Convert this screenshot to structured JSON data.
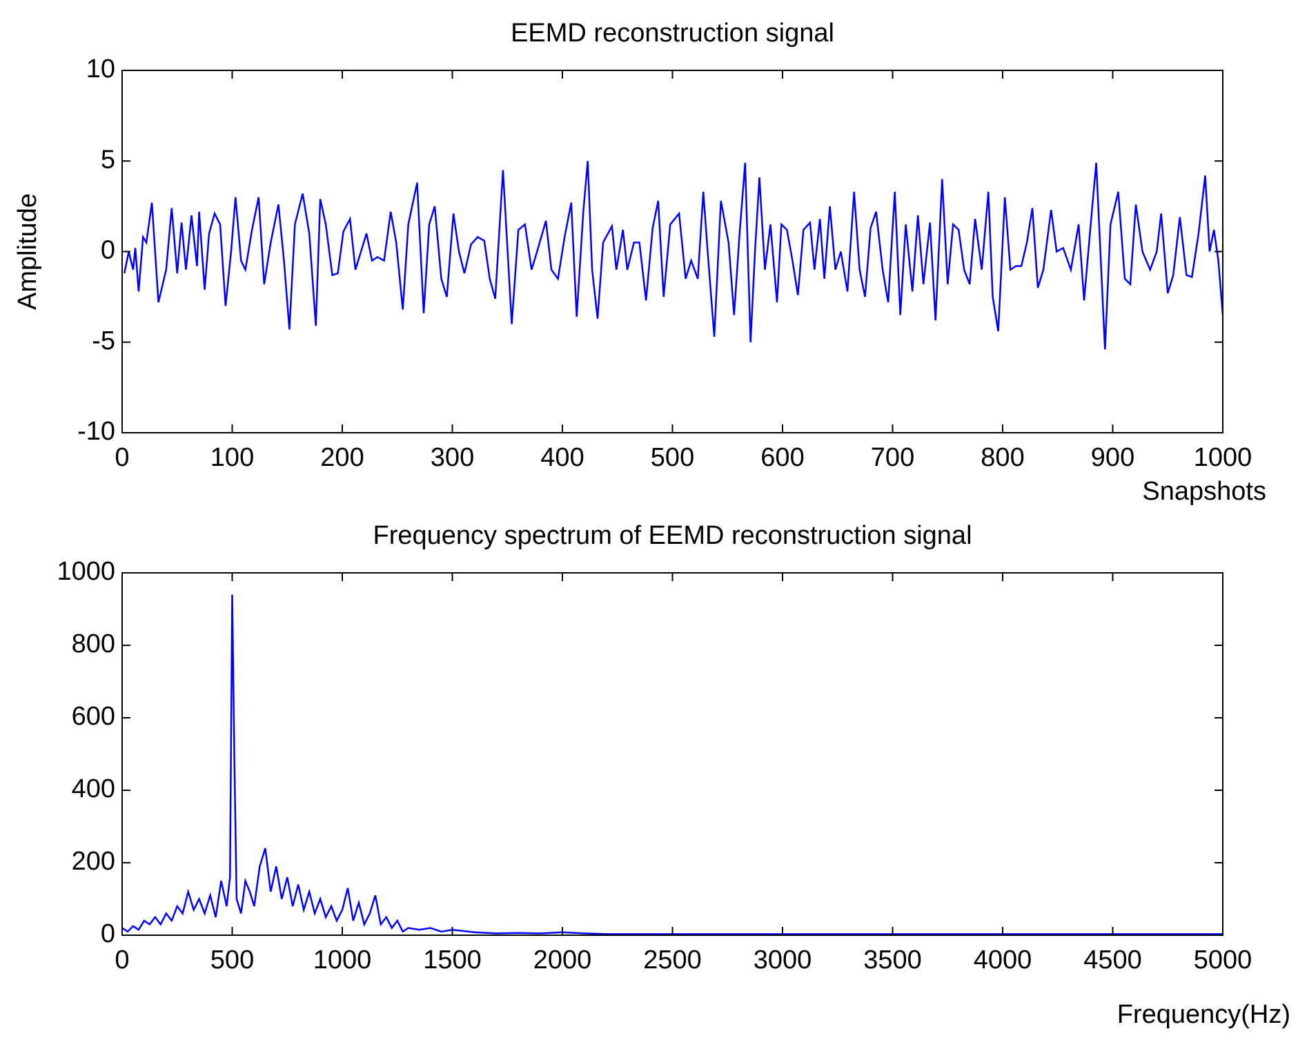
{
  "chart_data": [
    {
      "type": "line",
      "title": "EEMD reconstruction signal",
      "xlabel": "Snapshots",
      "ylabel": "Amplitude",
      "xlim": [
        0,
        1000
      ],
      "ylim": [
        -10,
        10
      ],
      "xticks": [
        0,
        100,
        200,
        300,
        400,
        500,
        600,
        700,
        800,
        900,
        1000
      ],
      "yticks": [
        -10,
        -5,
        0,
        5,
        10
      ],
      "series": [
        {
          "color": "#0000ff",
          "x": [
            2,
            6,
            10,
            12,
            15,
            19,
            22,
            27,
            33,
            40,
            45,
            50,
            54,
            58,
            63,
            68,
            70,
            75,
            79,
            84,
            89,
            94,
            99,
            103,
            108,
            112,
            118,
            124,
            129,
            135,
            142,
            147,
            152,
            157,
            164,
            170,
            176,
            180,
            185,
            191,
            196,
            201,
            207,
            212,
            217,
            222,
            227,
            232,
            238,
            244,
            249,
            255,
            260,
            268,
            274,
            279,
            284,
            290,
            295,
            301,
            306,
            311,
            317,
            323,
            329,
            334,
            339,
            346,
            354,
            360,
            366,
            372,
            377,
            385,
            390,
            396,
            402,
            408,
            413,
            419,
            423,
            427,
            432,
            437,
            445,
            449,
            455,
            459,
            465,
            470,
            476,
            482,
            487,
            492,
            498,
            506,
            512,
            517,
            523,
            528,
            532,
            538,
            544,
            551,
            556,
            561,
            566,
            571,
            575,
            579,
            584,
            589,
            595,
            599,
            604,
            609,
            614,
            619,
            625,
            629,
            634,
            638,
            643,
            648,
            653,
            659,
            665,
            670,
            675,
            680,
            685,
            691,
            696,
            702,
            707,
            712,
            718,
            723,
            728,
            734,
            739,
            745,
            750,
            755,
            760,
            765,
            770,
            775,
            781,
            787,
            791,
            796,
            802,
            807,
            812,
            817,
            822,
            827,
            832,
            837,
            844,
            849,
            855,
            862,
            869,
            874,
            880,
            885,
            893,
            898,
            905,
            911,
            916,
            921,
            927,
            934,
            940,
            944,
            950,
            955,
            961,
            967,
            972,
            978,
            984,
            988,
            992,
            996,
            1000
          ],
          "values": [
            -1.2,
            0,
            -1,
            0.2,
            -2.2,
            0.8,
            0.5,
            2.7,
            -2.8,
            -1,
            2.4,
            -1.2,
            1.6,
            -1,
            2,
            -0.8,
            2.2,
            -2.1,
            1,
            2.1,
            1.5,
            -3,
            0,
            3,
            -0.5,
            -1,
            1.2,
            3,
            -1.8,
            0.5,
            2.6,
            -0.5,
            -4.3,
            1.5,
            3.2,
            1,
            -4.1,
            2.9,
            1.5,
            -1.3,
            -1.2,
            1.1,
            1.8,
            -1,
            0,
            1,
            -0.5,
            -0.3,
            -0.5,
            2.2,
            0.5,
            -3.2,
            1.5,
            3.8,
            -3.4,
            1.5,
            2.5,
            -1.5,
            -2.5,
            2.1,
            0,
            -1.2,
            0.4,
            0.8,
            0.6,
            -1.5,
            -2.6,
            4.5,
            -4,
            1.2,
            1.5,
            -1,
            0,
            1.7,
            -1,
            -1.5,
            0.8,
            2.7,
            -3.6,
            2.2,
            5,
            -1,
            -3.7,
            0.5,
            1.4,
            -1,
            1.2,
            -1,
            0.5,
            0.5,
            -2.7,
            1.3,
            2.8,
            -2.5,
            1.5,
            2.1,
            -1.5,
            -0.5,
            -1.5,
            3.3,
            0,
            -4.7,
            2.8,
            0.5,
            -3.5,
            1,
            4.9,
            -5,
            0,
            4.1,
            -1,
            1.5,
            -2.8,
            1.5,
            1.2,
            -0.5,
            -2.4,
            1.2,
            1.6,
            -1,
            1.8,
            -1.5,
            2.5,
            -1,
            0,
            -2.2,
            3.3,
            -1,
            -2.5,
            1.3,
            2.2,
            -1,
            -2.8,
            3.3,
            -3.5,
            1.5,
            -2.2,
            2,
            -1.8,
            1.6,
            -3.8,
            4,
            -1.8,
            1.5,
            1.2,
            -1,
            -1.8,
            1.8,
            -1,
            3.3,
            -2.5,
            -4.4,
            3,
            -1,
            -0.8,
            -0.8,
            0.5,
            2.4,
            -2,
            -1,
            2.3,
            0,
            0.2,
            -1,
            1.5,
            -2.7,
            1.5,
            4.9,
            -5.4,
            1.5,
            3.3,
            -1.5,
            -1.8,
            2.6,
            0,
            -1,
            0,
            2.1,
            -2.3,
            -1.3,
            1.9,
            -1.3,
            -1.4,
            1,
            4.2,
            0,
            1.2,
            -0.5,
            -3.5
          ]
        }
      ]
    },
    {
      "type": "line",
      "title": "Frequency spectrum of EEMD reconstruction signal",
      "xlabel": "Frequency(Hz)",
      "xlim": [
        0,
        5000
      ],
      "ylim": [
        0,
        1000
      ],
      "xticks": [
        0,
        500,
        1000,
        1500,
        2000,
        2500,
        3000,
        3500,
        4000,
        4500,
        5000
      ],
      "yticks": [
        0,
        200,
        400,
        600,
        800,
        1000
      ],
      "series": [
        {
          "color": "#0000ff",
          "x": [
            0,
            25,
            50,
            75,
            100,
            125,
            150,
            175,
            200,
            225,
            250,
            275,
            300,
            325,
            350,
            375,
            400,
            425,
            450,
            475,
            490,
            500,
            510,
            520,
            540,
            560,
            580,
            600,
            625,
            650,
            675,
            700,
            725,
            750,
            775,
            800,
            825,
            850,
            875,
            900,
            925,
            950,
            975,
            1000,
            1025,
            1050,
            1075,
            1100,
            1125,
            1150,
            1175,
            1200,
            1225,
            1250,
            1275,
            1300,
            1350,
            1400,
            1450,
            1500,
            1600,
            1700,
            1800,
            1900,
            2000,
            2100,
            2200,
            2500,
            3000,
            3500,
            4000,
            4500,
            5000
          ],
          "values": [
            20,
            10,
            25,
            15,
            40,
            30,
            50,
            30,
            60,
            40,
            80,
            60,
            120,
            70,
            100,
            60,
            110,
            50,
            150,
            80,
            160,
            940,
            480,
            100,
            60,
            150,
            120,
            80,
            190,
            240,
            120,
            190,
            100,
            160,
            80,
            140,
            70,
            120,
            60,
            100,
            50,
            80,
            40,
            70,
            130,
            40,
            90,
            30,
            60,
            110,
            30,
            50,
            20,
            40,
            10,
            20,
            15,
            20,
            10,
            15,
            8,
            5,
            6,
            5,
            8,
            5,
            3,
            3,
            3,
            3,
            3,
            3,
            3
          ]
        }
      ]
    }
  ]
}
